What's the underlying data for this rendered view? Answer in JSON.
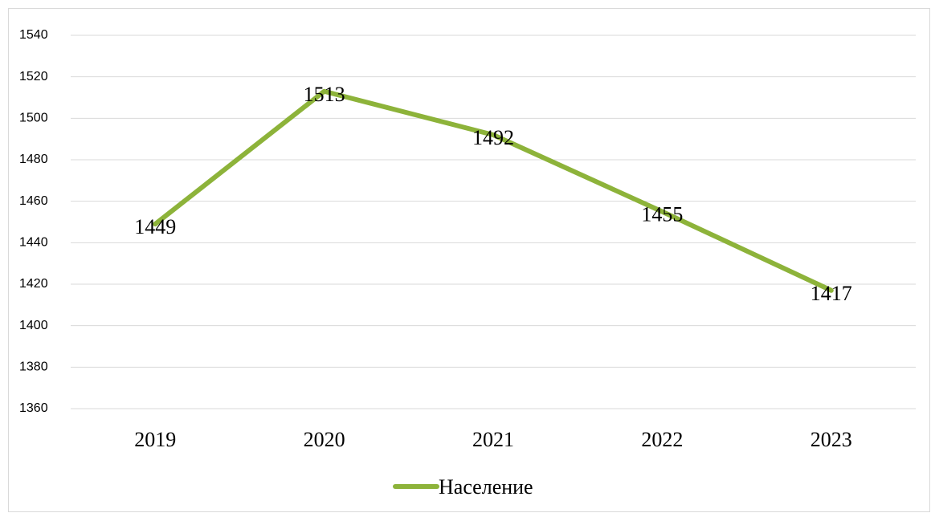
{
  "chart_data": {
    "type": "line",
    "categories": [
      "2019",
      "2020",
      "2021",
      "2022",
      "2023"
    ],
    "series": [
      {
        "name": "Население",
        "color": "#8db33a",
        "values": [
          1449,
          1513,
          1492,
          1455,
          1417
        ]
      }
    ],
    "ylim": [
      1360,
      1540
    ],
    "yticks": [
      1360,
      1380,
      1400,
      1420,
      1440,
      1460,
      1480,
      1500,
      1520,
      1540
    ],
    "grid": true,
    "legend": "bottom"
  }
}
